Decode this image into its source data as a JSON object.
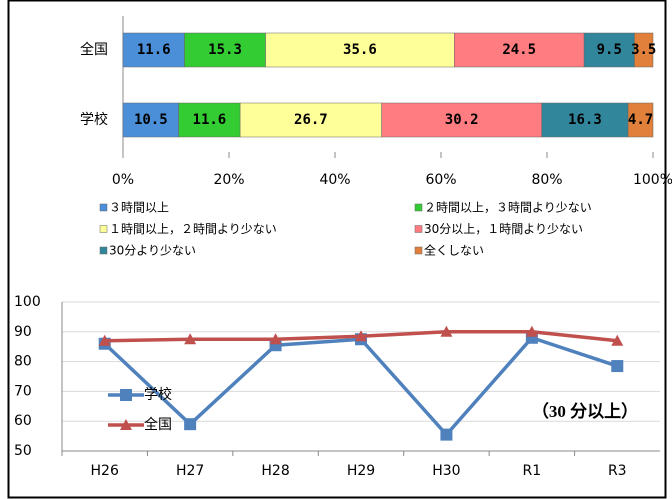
{
  "chart_data": [
    {
      "type": "bar",
      "orientation": "horizontal",
      "stacked": true,
      "categories": [
        "全国",
        "学校"
      ],
      "series": [
        {
          "name": "３時間以上",
          "color": "#4a8fd8",
          "values": [
            11.6,
            10.5
          ]
        },
        {
          "name": "２時間以上，３時間より少ない",
          "color": "#33cc33",
          "values": [
            15.3,
            11.6
          ]
        },
        {
          "name": "１時間以上，２時間より少ない",
          "color": "#ffff99",
          "values": [
            35.6,
            26.7
          ]
        },
        {
          "name": "30分以上，１時間より少ない",
          "color": "#ff7c80",
          "values": [
            24.5,
            30.2
          ]
        },
        {
          "name": "30分より少ない",
          "color": "#31869b",
          "values": [
            9.5,
            16.3
          ]
        },
        {
          "name": "全くしない",
          "color": "#e0803a",
          "values": [
            3.5,
            4.7
          ]
        }
      ],
      "xlim": [
        0,
        100
      ],
      "xticks": [
        {
          "value": 0,
          "label": "0%"
        },
        {
          "value": 20,
          "label": "20%"
        },
        {
          "value": 40,
          "label": "40%"
        },
        {
          "value": 60,
          "label": "60%"
        },
        {
          "value": 80,
          "label": "80%"
        },
        {
          "value": 100,
          "label": "100%"
        }
      ]
    },
    {
      "type": "line",
      "categories": [
        "H26",
        "H27",
        "H28",
        "H29",
        "H30",
        "R1",
        "R3"
      ],
      "series": [
        {
          "name": "学校",
          "color": "#4f81bd",
          "marker": "square",
          "values": [
            86,
            59,
            85.5,
            87.5,
            55.5,
            88,
            78.5
          ]
        },
        {
          "name": "全国",
          "color": "#c0504d",
          "marker": "triangle",
          "values": [
            87,
            87.5,
            87.5,
            88.5,
            90,
            90,
            87
          ]
        }
      ],
      "ylim": [
        50,
        100
      ],
      "yticks": [
        50,
        60,
        70,
        80,
        90,
        100
      ],
      "grid": true,
      "annotation": "（30 分以上）"
    }
  ]
}
